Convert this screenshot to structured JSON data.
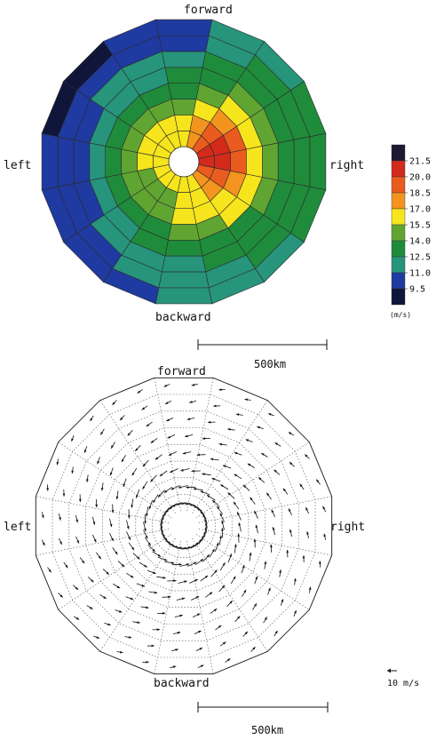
{
  "chart_data": [
    {
      "type": "heatmap",
      "title": "",
      "labels": {
        "top": "forward",
        "bottom": "backward",
        "left": "left",
        "right": "right"
      },
      "colorbar": {
        "unit": "(m/s)",
        "ticks": [
          "21.5",
          "20.0",
          "18.5",
          "17.0",
          "15.5",
          "14.0",
          "12.5",
          "11.0",
          "9.5"
        ],
        "colors": [
          "#1c1a33",
          "#d32a1c",
          "#ea5b1f",
          "#f3941f",
          "#f6e51c",
          "#60a532",
          "#1f8c3c",
          "#27947c",
          "#1f3aa0",
          "#10163a"
        ]
      },
      "grid": {
        "sectors": 16,
        "rings": 8
      },
      "scale_bar": "500km",
      "speed_field_rings": [
        [
          16.5,
          17.5,
          19,
          20,
          20,
          19,
          17.5,
          16.5,
          16,
          15.5,
          15.8,
          16,
          16,
          16,
          16,
          16
        ],
        [
          16,
          17,
          18.5,
          20.5,
          21,
          19,
          17.5,
          16,
          15.5,
          15.2,
          15,
          15.2,
          15.5,
          15.5,
          15.5,
          15.8
        ],
        [
          15,
          16,
          17.5,
          18.5,
          18.5,
          17.5,
          16.5,
          15.5,
          15.5,
          15,
          14.5,
          14.5,
          14.5,
          14.5,
          14.5,
          14.8
        ],
        [
          13.5,
          14.5,
          15.5,
          16.5,
          16.5,
          16,
          15.5,
          14.5,
          14,
          13.5,
          13,
          13,
          12.8,
          12.8,
          13,
          13.2
        ],
        [
          12.5,
          13.5,
          14,
          14.5,
          14.5,
          14,
          13.5,
          13,
          12.8,
          12.5,
          12,
          11.8,
          11.5,
          11.5,
          12,
          12.2
        ],
        [
          11.5,
          12.5,
          13,
          13.5,
          13.5,
          13,
          12.8,
          12.5,
          12,
          11.8,
          11.2,
          10.8,
          10.5,
          10.5,
          11,
          11.2
        ],
        [
          10.8,
          11.8,
          12.5,
          13,
          12.8,
          12.6,
          12.5,
          12,
          11.5,
          11,
          10.5,
          10.2,
          9.8,
          9.8,
          10.3,
          10.5
        ],
        [
          10.5,
          11.2,
          12,
          12.5,
          12.6,
          12.5,
          12.3,
          11.5,
          11,
          10.5,
          10,
          9.8,
          9.5,
          9.0,
          9.2,
          9.8
        ]
      ]
    },
    {
      "type": "vector",
      "title": "",
      "labels": {
        "top": "forward",
        "bottom": "backward",
        "left": "left",
        "right": "right"
      },
      "reference_vector": "10 m/s",
      "scale_bar": "500km",
      "grid": {
        "sectors": 16,
        "rings": 8
      }
    }
  ]
}
